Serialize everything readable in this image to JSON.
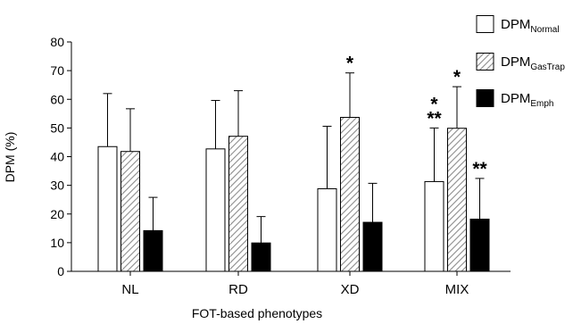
{
  "chart_data": {
    "type": "bar",
    "xlabel": "FOT-based phenotypes",
    "ylabel": "DPM (%)",
    "ylim": [
      0,
      80
    ],
    "yticks": [
      0,
      10,
      20,
      30,
      40,
      50,
      60,
      70,
      80
    ],
    "categories": [
      "NL",
      "RD",
      "XD",
      "MIX"
    ],
    "legend_position": "right",
    "series": [
      {
        "name": "DPM",
        "subscript": "Normal",
        "fill": "white",
        "color": "#ffffff",
        "values": [
          43.5,
          42.7,
          28.8,
          31.3
        ],
        "errors": [
          62.0,
          59.6,
          50.6,
          50.0
        ],
        "significance": [
          "",
          "",
          "",
          "**"
        ]
      },
      {
        "name": "DPM",
        "subscript": "GasTrap",
        "fill": "hatched",
        "color": "#999999",
        "values": [
          41.8,
          47.1,
          53.7,
          49.9
        ],
        "errors": [
          56.7,
          63.0,
          69.2,
          64.4
        ],
        "significance": [
          "",
          "",
          "*",
          "*"
        ]
      },
      {
        "name": "DPM",
        "subscript": "Emph",
        "fill": "black",
        "color": "#000000",
        "values": [
          14.2,
          9.9,
          17.1,
          18.2
        ],
        "errors": [
          25.8,
          19.1,
          30.7,
          32.4
        ],
        "significance": [
          "",
          "",
          "",
          "**"
        ]
      }
    ],
    "extra_annotations": [
      {
        "category": "MIX",
        "series": 0,
        "text": "*"
      }
    ]
  }
}
